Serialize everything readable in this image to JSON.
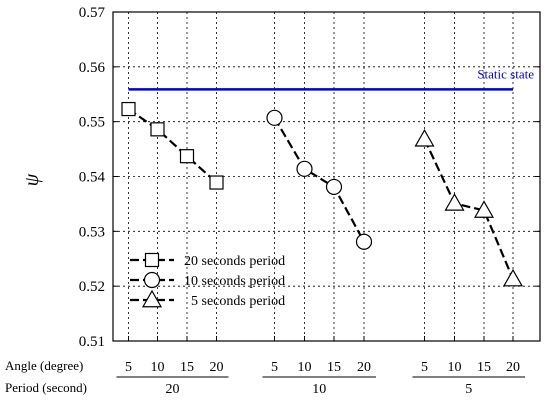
{
  "chart_data": {
    "type": "line",
    "ylabel": "ψ",
    "ylim": [
      0.51,
      0.57
    ],
    "ytick_values": [
      0.51,
      0.52,
      0.53,
      0.54,
      0.55,
      0.56,
      0.57
    ],
    "ytick_labels": [
      "0.51",
      "0.52",
      "0.53",
      "0.54",
      "0.55",
      "0.56",
      "0.57"
    ],
    "x_categories": [
      "5",
      "10",
      "15",
      "20",
      "5",
      "10",
      "15",
      "20",
      "5",
      "10",
      "15",
      "20"
    ],
    "x_row1_label": "Angle (degree)",
    "x_row2_label": "Period (second)",
    "periods": [
      {
        "label": "20",
        "start": 0,
        "end": 3
      },
      {
        "label": "10",
        "start": 4,
        "end": 7
      },
      {
        "label": "5",
        "start": 8,
        "end": 11
      }
    ],
    "grid": "dotted-both",
    "series": [
      {
        "name": "20 seconds period",
        "marker": "square",
        "x_index": [
          0,
          1,
          2,
          3
        ],
        "values": [
          0.5523,
          0.5486,
          0.5437,
          0.5389
        ]
      },
      {
        "name": "10 seconds period",
        "marker": "circle",
        "x_index": [
          4,
          5,
          6,
          7
        ],
        "values": [
          0.5507,
          0.5414,
          0.5381,
          0.5281
        ]
      },
      {
        "name": "5 seconds period",
        "marker": "triangle",
        "x_index": [
          8,
          9,
          10,
          11
        ],
        "values": [
          0.5468,
          0.5351,
          0.5338,
          0.5213
        ]
      }
    ],
    "reference_line": {
      "name": "Static state",
      "value": 0.5559,
      "color": "#0000dd"
    },
    "legend_position": "bottom-left",
    "legend_labels": [
      "20 seconds period",
      "10 seconds period",
      "  5 seconds period"
    ],
    "colors": {
      "series": "#000000",
      "static": "#0000dd"
    }
  }
}
